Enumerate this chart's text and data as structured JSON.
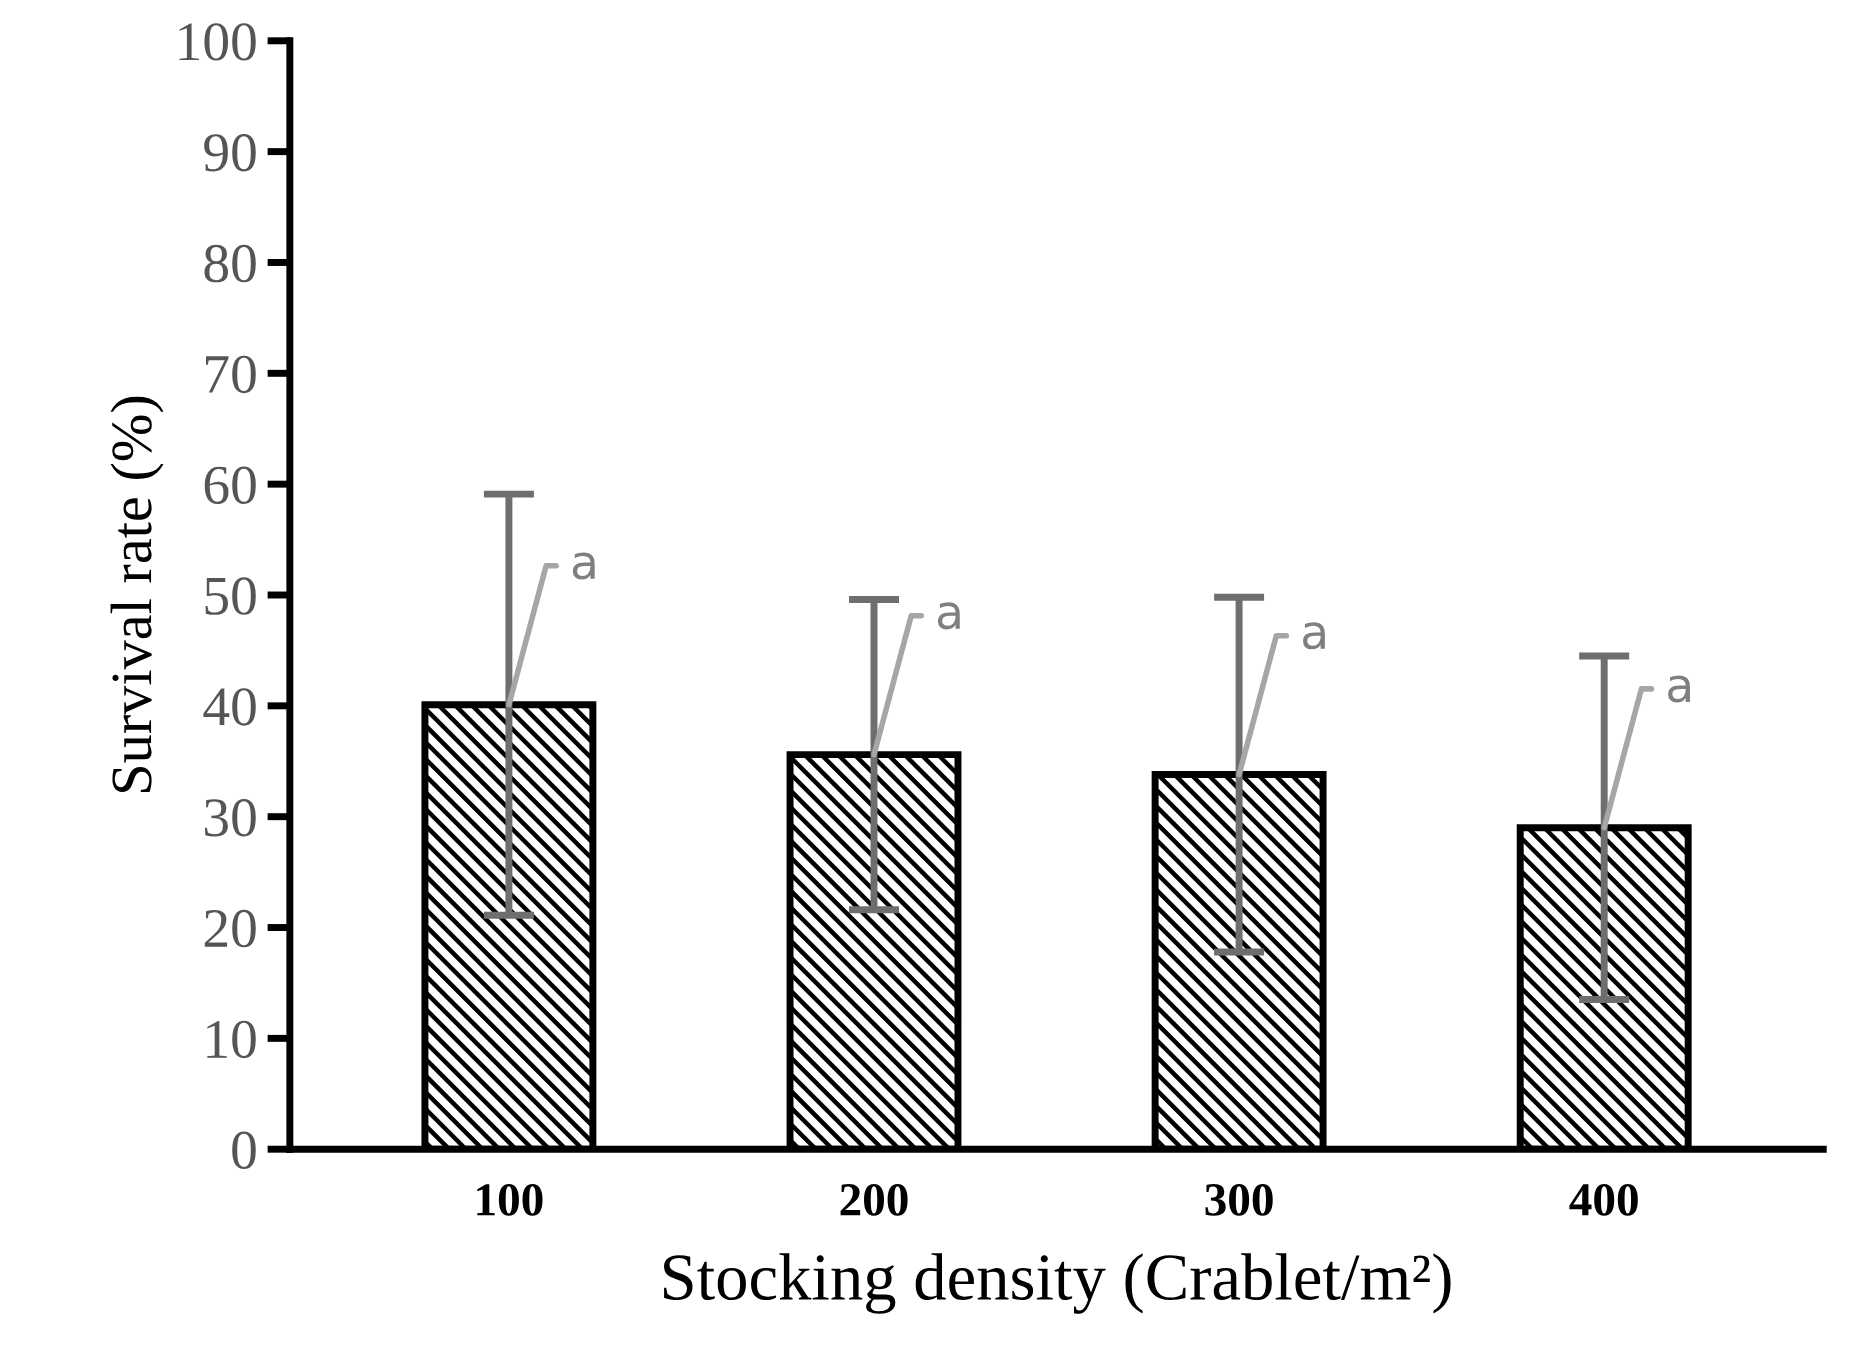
{
  "chart_data": {
    "type": "bar",
    "xlabel": "Stocking density (Crablet/m²)",
    "ylabel": "Survival rate (%)",
    "categories": [
      "100",
      "200",
      "300",
      "400"
    ],
    "values": [
      40.1,
      35.6,
      33.8,
      29.0
    ],
    "errors": [
      19,
      14,
      16,
      15.5
    ],
    "color": "#000000",
    "ylim": [
      0,
      100
    ],
    "yticks": [
      0,
      10,
      20,
      30,
      40,
      50,
      60,
      70,
      80,
      90,
      100
    ],
    "grid": false,
    "legend": false,
    "annotations": [
      {
        "text": "a",
        "x": "100",
        "y": 40.1
      },
      {
        "text": "a",
        "x": "200",
        "y": 35.6
      },
      {
        "text": "a",
        "x": "300",
        "y": 33.8
      },
      {
        "text": "a",
        "x": "400",
        "y": 29.0
      }
    ]
  }
}
